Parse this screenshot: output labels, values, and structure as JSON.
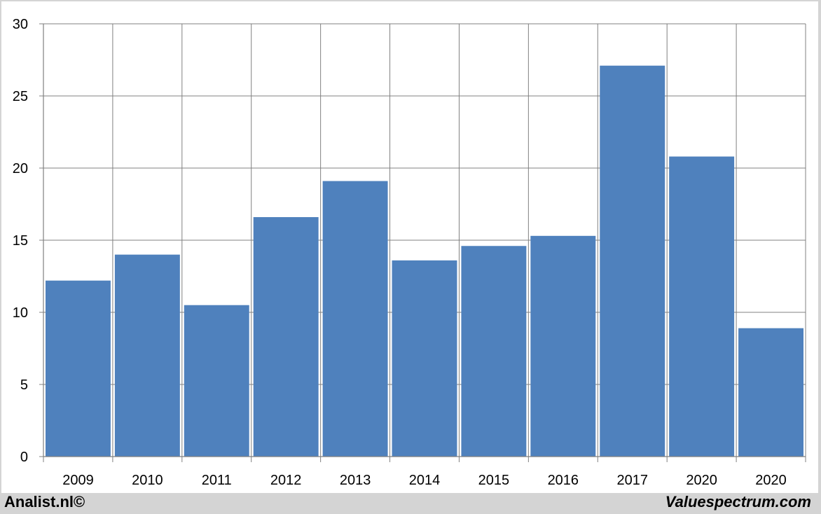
{
  "chart_data": {
    "type": "bar",
    "categories": [
      "2009",
      "2010",
      "2011",
      "2012",
      "2013",
      "2014",
      "2015",
      "2016",
      "2017",
      "2020",
      "2020"
    ],
    "values": [
      12.2,
      14.0,
      10.5,
      16.6,
      19.1,
      13.6,
      14.6,
      15.3,
      27.1,
      20.8,
      8.9
    ],
    "title": "",
    "xlabel": "",
    "ylabel": "",
    "ylim": [
      0,
      30
    ],
    "yticks": [
      "0",
      "5",
      "10",
      "15",
      "20",
      "25",
      "30"
    ],
    "grid": true,
    "bar_color": "#4f81bd",
    "grid_color": "#808080"
  },
  "footer": {
    "left": "Analist.nl©",
    "right": "Valuespectrum.com"
  }
}
